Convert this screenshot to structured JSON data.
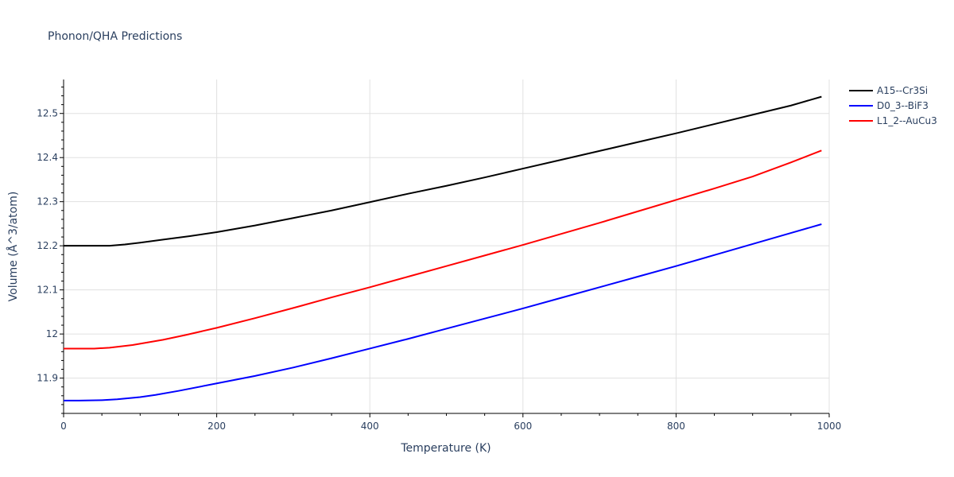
{
  "chart_data": {
    "type": "line",
    "title": "Phonon/QHA Predictions",
    "xlabel": "Temperature (K)",
    "ylabel": "Volume (Å^3/atom)",
    "xlim": [
      0,
      1000
    ],
    "ylim": [
      11.82,
      12.577
    ],
    "xticks": [
      0,
      200,
      400,
      600,
      800,
      1000
    ],
    "xtick_labels": [
      "0",
      "200",
      "400",
      "600",
      "800",
      "1000"
    ],
    "yticks": [
      11.9,
      12.0,
      12.1,
      12.2,
      12.3,
      12.4,
      12.5
    ],
    "ytick_labels": [
      "11.9",
      "12",
      "12.1",
      "12.2",
      "12.3",
      "12.4",
      "12.5"
    ],
    "grid": true,
    "legend_position": "top-right (outside plot)",
    "series": [
      {
        "name": "A15--Cr3Si",
        "color": "#000000",
        "x": [
          0,
          20,
          40,
          60,
          80,
          100,
          130,
          165,
          200,
          250,
          300,
          350,
          400,
          450,
          500,
          550,
          600,
          650,
          700,
          750,
          800,
          850,
          900,
          950,
          990
        ],
        "y": [
          12.2,
          12.2,
          12.2,
          12.2,
          12.203,
          12.207,
          12.214,
          12.222,
          12.231,
          12.246,
          12.263,
          12.28,
          12.299,
          12.318,
          12.336,
          12.355,
          12.375,
          12.395,
          12.415,
          12.435,
          12.455,
          12.476,
          12.497,
          12.518,
          12.538
        ]
      },
      {
        "name": "D0_3--BiF3",
        "color": "#0000ff",
        "x": [
          0,
          20,
          50,
          70,
          100,
          120,
          150,
          200,
          250,
          300,
          350,
          400,
          450,
          500,
          550,
          600,
          650,
          700,
          750,
          800,
          850,
          900,
          950,
          990
        ],
        "y": [
          11.849,
          11.849,
          11.85,
          11.852,
          11.857,
          11.862,
          11.871,
          11.888,
          11.905,
          11.924,
          11.945,
          11.967,
          11.989,
          12.012,
          12.035,
          12.058,
          12.082,
          12.106,
          12.13,
          12.154,
          12.179,
          12.204,
          12.229,
          12.249
        ]
      },
      {
        "name": "L1_2--AuCu3",
        "color": "#ff0000",
        "x": [
          0,
          20,
          40,
          60,
          90,
          130,
          160,
          200,
          250,
          300,
          350,
          400,
          450,
          500,
          550,
          600,
          650,
          700,
          750,
          800,
          850,
          900,
          950,
          990
        ],
        "y": [
          11.967,
          11.967,
          11.967,
          11.969,
          11.975,
          11.987,
          11.998,
          12.014,
          12.036,
          12.059,
          12.083,
          12.106,
          12.13,
          12.154,
          12.178,
          12.202,
          12.227,
          12.252,
          12.278,
          12.304,
          12.33,
          12.357,
          12.389,
          12.416
        ]
      }
    ]
  }
}
